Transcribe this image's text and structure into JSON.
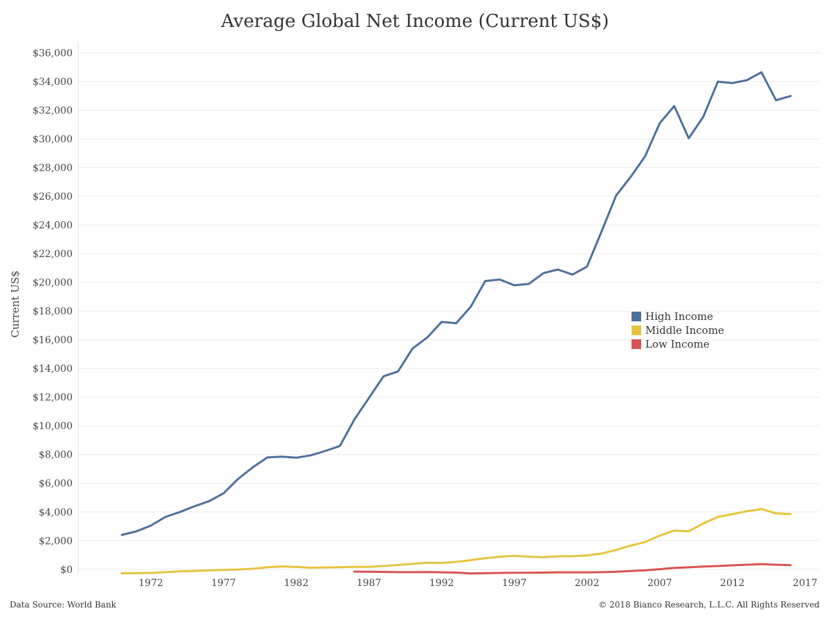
{
  "chart_data": {
    "type": "line",
    "title": "Average Global Net Income (Current US$)",
    "ylabel": "Current US$",
    "xlabel": "",
    "xlim": [
      1967,
      2018
    ],
    "ylim": [
      -300,
      36800
    ],
    "x_ticks": [
      1972,
      1977,
      1982,
      1987,
      1992,
      1997,
      2002,
      2007,
      2012,
      2017
    ],
    "y_ticks": [
      0,
      2000,
      4000,
      6000,
      8000,
      10000,
      12000,
      14000,
      16000,
      18000,
      20000,
      22000,
      24000,
      26000,
      28000,
      30000,
      32000,
      34000,
      36000
    ],
    "y_tick_labels": [
      "$0",
      "$2,000",
      "$4,000",
      "$6,000",
      "$8,000",
      "$10,000",
      "$12,000",
      "$14,000",
      "$16,000",
      "$18,000",
      "$20,000",
      "$22,000",
      "$24,000",
      "$26,000",
      "$28,000",
      "$30,000",
      "$32,000",
      "$34,000",
      "$36,000"
    ],
    "grid": "horizontal",
    "legend_position": "right-center",
    "series": [
      {
        "name": "High Income",
        "color": "#4e6f9c",
        "x": [
          1970,
          1971,
          1972,
          1973,
          1974,
          1975,
          1976,
          1977,
          1978,
          1979,
          1980,
          1981,
          1982,
          1983,
          1984,
          1985,
          1986,
          1987,
          1988,
          1989,
          1990,
          1991,
          1992,
          1993,
          1994,
          1995,
          1996,
          1997,
          1998,
          1999,
          2000,
          2001,
          2002,
          2003,
          2004,
          2005,
          2006,
          2007,
          2008,
          2009,
          2010,
          2011,
          2012,
          2013,
          2014,
          2015,
          2016
        ],
        "values": [
          2400,
          2650,
          3050,
          3650,
          4000,
          4400,
          4750,
          5300,
          6300,
          7100,
          7800,
          7850,
          7780,
          7950,
          8250,
          8600,
          10450,
          11950,
          13450,
          13800,
          15400,
          16150,
          17250,
          17150,
          18300,
          20100,
          20200,
          19800,
          19900,
          20650,
          20900,
          20550,
          21100,
          23550,
          26050,
          27350,
          28800,
          31100,
          32300,
          30050,
          31550,
          34000,
          33900,
          34100,
          34650,
          32700,
          33000
        ]
      },
      {
        "name": "Middle Income",
        "color": "#e8c33f",
        "x": [
          1970,
          1971,
          1972,
          1973,
          1974,
          1975,
          1976,
          1977,
          1978,
          1979,
          1980,
          1981,
          1982,
          1983,
          1984,
          1985,
          1986,
          1987,
          1988,
          1989,
          1990,
          1991,
          1992,
          1993,
          1994,
          1995,
          1996,
          1997,
          1998,
          1999,
          2000,
          2001,
          2002,
          2003,
          2004,
          2005,
          2006,
          2007,
          2008,
          2009,
          2010,
          2011,
          2012,
          2013,
          2014,
          2015,
          2016
        ],
        "values": [
          -280,
          -270,
          -250,
          -200,
          -140,
          -110,
          -80,
          -40,
          -10,
          40,
          140,
          200,
          170,
          110,
          130,
          150,
          170,
          170,
          230,
          300,
          380,
          460,
          440,
          520,
          640,
          770,
          880,
          940,
          880,
          840,
          910,
          910,
          960,
          1100,
          1350,
          1650,
          1900,
          2350,
          2700,
          2650,
          3200,
          3650,
          3850,
          4050,
          4200,
          3900,
          3850
        ]
      },
      {
        "name": "Low Income",
        "color": "#d9534f",
        "x": [
          1986,
          1987,
          1988,
          1989,
          1990,
          1991,
          1992,
          1993,
          1994,
          1995,
          1996,
          1997,
          1998,
          1999,
          2000,
          2001,
          2002,
          2003,
          2004,
          2005,
          2006,
          2007,
          2008,
          2009,
          2010,
          2011,
          2012,
          2013,
          2014,
          2015,
          2016
        ],
        "values": [
          -160,
          -170,
          -180,
          -200,
          -200,
          -190,
          -210,
          -230,
          -290,
          -270,
          -250,
          -240,
          -240,
          -230,
          -210,
          -210,
          -210,
          -200,
          -170,
          -120,
          -70,
          10,
          100,
          140,
          190,
          230,
          280,
          320,
          360,
          320,
          290
        ]
      }
    ]
  },
  "footer": {
    "source": "Data Source: World Bank",
    "copyright": "© 2018 Bianco Research, L.L.C. All Rights Reserved"
  }
}
